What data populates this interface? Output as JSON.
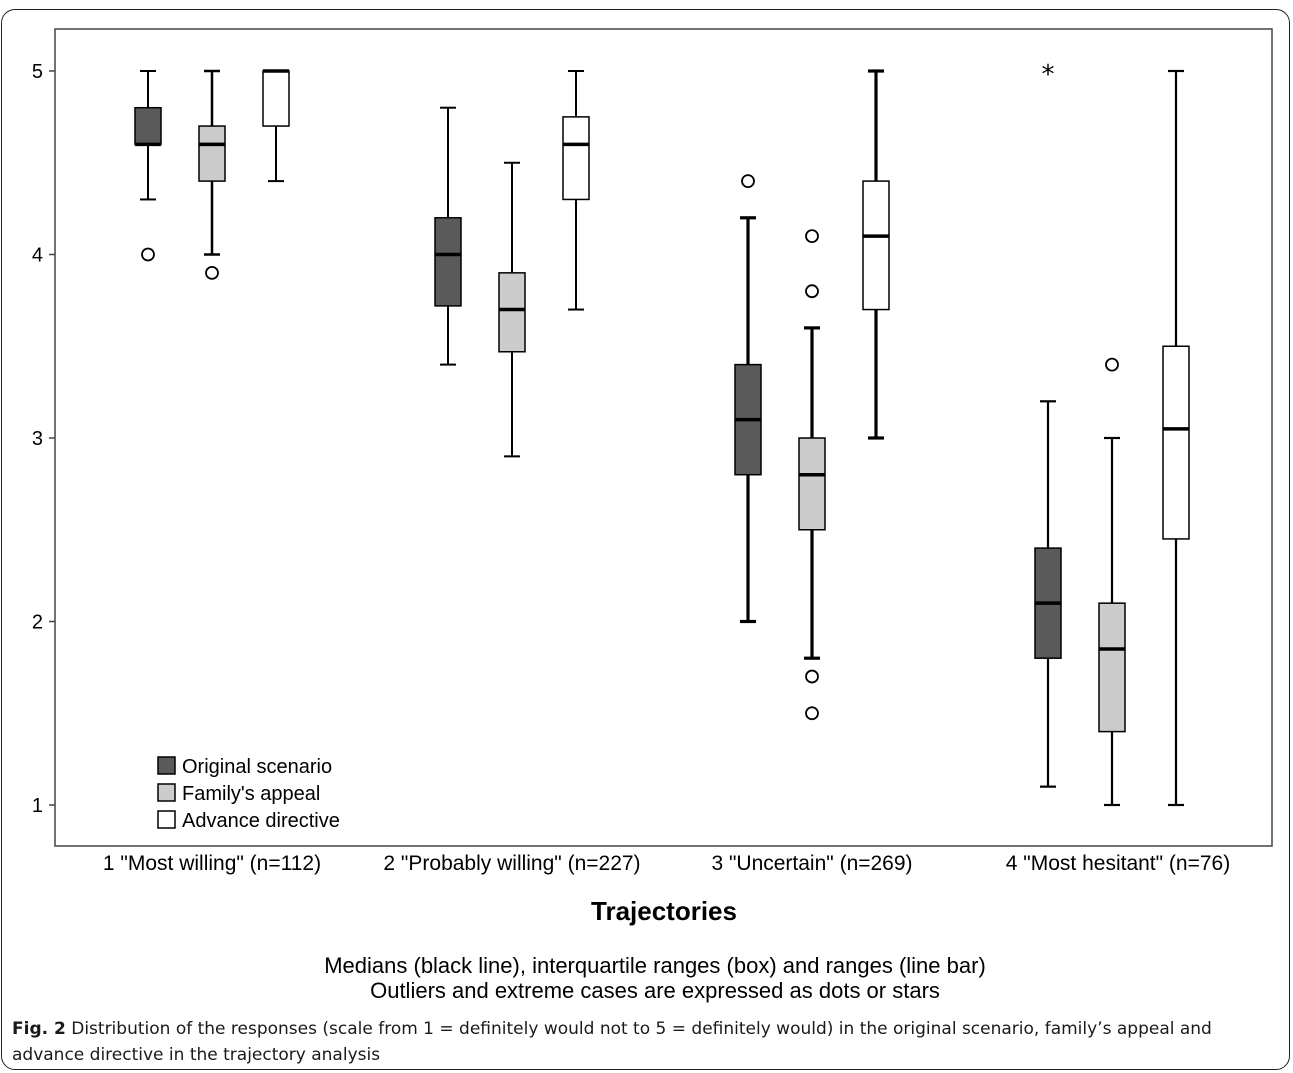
{
  "chart_data": {
    "type": "boxplot",
    "xlabel": "Trajectories",
    "ylabel": "",
    "ylim": [
      0.9,
      5.2
    ],
    "yticks": [
      "1",
      "2",
      "3",
      "4",
      "5"
    ],
    "grid": false,
    "legend_position": "bottom-left",
    "categories": [
      "1 \"Most willing\" (n=112)",
      "2 \"Probably willing\" (n=227)",
      "3 \"Uncertain\" (n=269)",
      "4 \"Most hesitant\" (n=76)"
    ],
    "series": [
      {
        "name": "Original scenario",
        "color": "#5a5a5a",
        "boxes": [
          {
            "min": 4.3,
            "q1": 4.6,
            "median": 4.6,
            "q3": 4.8,
            "max": 5.0,
            "outliers": [
              4.0
            ],
            "extremes": []
          },
          {
            "min": 3.4,
            "q1": 3.72,
            "median": 4.0,
            "q3": 4.2,
            "max": 4.8,
            "outliers": [],
            "extremes": []
          },
          {
            "min": 2.0,
            "q1": 2.8,
            "median": 3.1,
            "q3": 3.4,
            "max": 4.2,
            "outliers": [
              4.4
            ],
            "extremes": []
          },
          {
            "min": 1.1,
            "q1": 1.8,
            "median": 2.1,
            "q3": 2.4,
            "max": 3.2,
            "outliers": [],
            "extremes": [
              5.0
            ]
          }
        ]
      },
      {
        "name": "Family's appeal",
        "color": "#cccccc",
        "boxes": [
          {
            "min": 4.0,
            "q1": 4.4,
            "median": 4.6,
            "q3": 4.7,
            "max": 5.0,
            "outliers": [
              3.9
            ],
            "extremes": []
          },
          {
            "min": 2.9,
            "q1": 3.47,
            "median": 3.7,
            "q3": 3.9,
            "max": 4.5,
            "outliers": [],
            "extremes": []
          },
          {
            "min": 1.8,
            "q1": 2.5,
            "median": 2.8,
            "q3": 3.0,
            "max": 3.6,
            "outliers": [
              4.1,
              3.8,
              1.7,
              1.5
            ],
            "extremes": []
          },
          {
            "min": 1.0,
            "q1": 1.4,
            "median": 1.85,
            "q3": 2.1,
            "max": 3.0,
            "outliers": [
              3.4
            ],
            "extremes": []
          }
        ]
      },
      {
        "name": "Advance directive",
        "color": "#ffffff",
        "boxes": [
          {
            "min": 4.4,
            "q1": 4.7,
            "median": 5.0,
            "q3": 5.0,
            "max": 5.0,
            "outliers": [],
            "extremes": []
          },
          {
            "min": 3.7,
            "q1": 4.3,
            "median": 4.6,
            "q3": 4.75,
            "max": 5.0,
            "outliers": [],
            "extremes": []
          },
          {
            "min": 3.0,
            "q1": 3.7,
            "median": 4.1,
            "q3": 4.4,
            "max": 5.0,
            "outliers": [],
            "extremes": []
          },
          {
            "min": 1.0,
            "q1": 2.45,
            "median": 3.05,
            "q3": 3.5,
            "max": 5.0,
            "outliers": [],
            "extremes": []
          }
        ]
      }
    ],
    "note_line1": "Medians (black line), interquartile ranges (box) and ranges (line bar)",
    "note_line2": "Outliers and extreme cases are expressed as dots or stars"
  },
  "caption": {
    "label": "Fig. 2",
    "text": " Distribution of the responses (scale from 1 = definitely would not to 5 = definitely would) in the original scenario, family’s appeal and advance directive in the trajectory analysis"
  }
}
